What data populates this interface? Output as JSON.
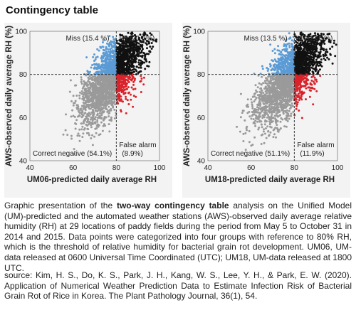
{
  "page": {
    "title": "Contingency table",
    "caption_pre": "Graphic presentation of the ",
    "caption_bold": "two-way contingency table",
    "caption_post": " analysis on the Unified Model (UM)-predicted and the automated weather stations (AWS)-observed daily average relative humidity (RH) at 29 locations of paddy fields during the period from May 5 to October 31 in 2014 and 2015. Data points were categorized into four groups with reference to 80% RH, which is the threshold of relative humidity for bacterial grain rot development. UM06, UM-data released at 0600 Universal Time Coordinated (UTC); UM18, UM-data released at 1800 UTC.",
    "source": "source: Kim, H. S., Do, K. S., Park, J. H., Kang, W. S., Lee, Y. H., & Park, E. W. (2020). Application of Numerical Weather Prediction Data to Estimate Infection Risk of Bacterial Grain Rot of Rice in Korea. The Plant Pathology Journal, 36(1), 54."
  },
  "colors": {
    "hit": "#111111",
    "miss": "#5b9bd5",
    "false_alarm": "#d9232b",
    "correct_negative": "#9a9a9a",
    "panel_bg": "#f3f3f3"
  },
  "chart_data": [
    {
      "type": "scatter",
      "xlabel": "UM06-predicted daily average RH",
      "ylabel": "AWS-observed daily average RH (%)",
      "xlim": [
        40,
        100
      ],
      "ylim": [
        40,
        100
      ],
      "xticks": [
        40,
        60,
        80,
        100
      ],
      "yticks": [
        40,
        60,
        80,
        100
      ],
      "threshold": 80,
      "quadrants": {
        "miss": "Miss (15.4 %)",
        "hit": "Hit (21.6%)",
        "correct_negative": "Correct negative (54.1%)",
        "false_alarm_label": "False alarm",
        "false_alarm_value": "(8.9%)"
      }
    },
    {
      "type": "scatter",
      "xlabel": "UM18-predicted daily average RH",
      "ylabel": "AWS-observed daily average RH (%)",
      "xlim": [
        40,
        100
      ],
      "ylim": [
        40,
        100
      ],
      "xticks": [
        40,
        60,
        80,
        100
      ],
      "yticks": [
        40,
        60,
        80,
        100
      ],
      "threshold": 80,
      "quadrants": {
        "miss": "Miss (13.5 %)",
        "hit": "Hit (23.5%)",
        "correct_negative": "Correct negative (51.1%)",
        "false_alarm_label": "False alarm",
        "false_alarm_value": "(11.9%)"
      }
    }
  ]
}
